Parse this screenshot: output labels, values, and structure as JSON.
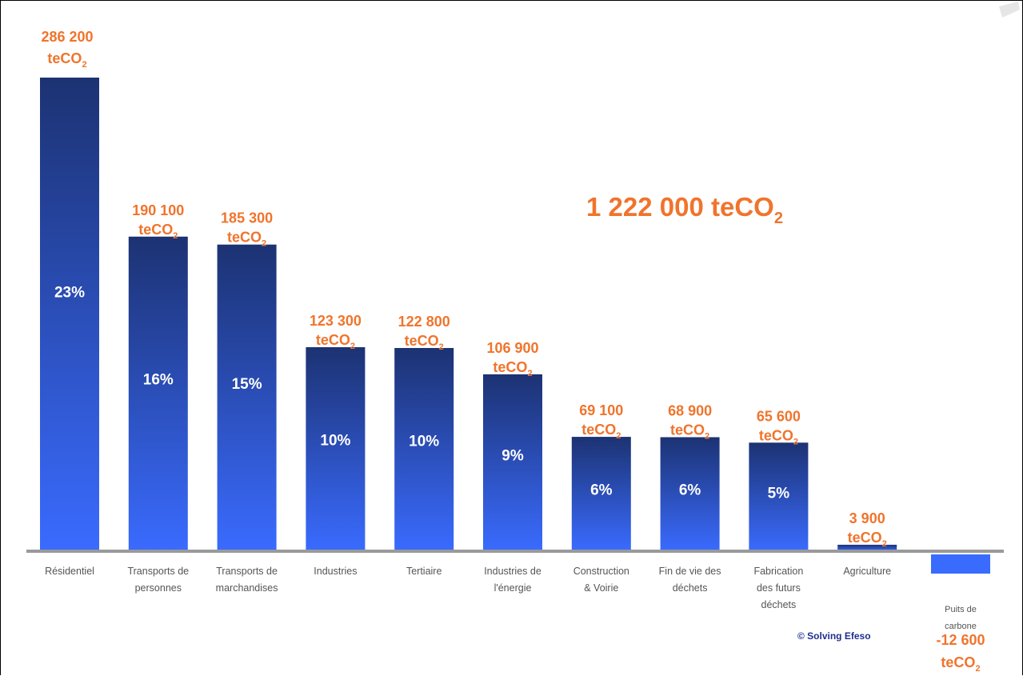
{
  "colors": {
    "bar_top": "#1c3272",
    "bar_bottom": "#3a6bff",
    "label": "#f0742c",
    "baseline": "#9a9a9a",
    "category_text": "#555555",
    "credit": "#1f2f8f"
  },
  "total": {
    "number": "1 222 000 teCO",
    "sub": "2"
  },
  "credit": "© Solving Efeso",
  "chart_data": {
    "type": "bar",
    "unit": "teCO2",
    "categories": [
      [
        "Résidentiel"
      ],
      [
        "Transports de",
        "personnes"
      ],
      [
        "Transports de",
        "marchandises"
      ],
      [
        "Industries"
      ],
      [
        "Tertiaire"
      ],
      [
        "Industries de",
        "l'énergie"
      ],
      [
        "Construction",
        "& Voirie"
      ],
      [
        "Fin de vie des",
        "déchets"
      ],
      [
        "Fabrication",
        "des futurs",
        "déchets"
      ],
      [
        "Agriculture"
      ],
      [
        "Puits de",
        "carbone"
      ]
    ],
    "values": [
      286200,
      190100,
      185300,
      123300,
      122800,
      106900,
      69100,
      68900,
      65600,
      3900,
      -12600
    ],
    "value_labels": [
      "286 200",
      "190 100",
      "185 300",
      "123 300",
      "122 800",
      "106 900",
      "69 100",
      "68 900",
      "65 600",
      "3 900",
      "-12 600"
    ],
    "unit_label": "teCO",
    "unit_sub": "2",
    "percent_labels": [
      "23%",
      "16%",
      "15%",
      "10%",
      "10%",
      "9%",
      "6%",
      "6%",
      "5%",
      "",
      ""
    ],
    "total_label": "1 222 000 teCO2"
  }
}
